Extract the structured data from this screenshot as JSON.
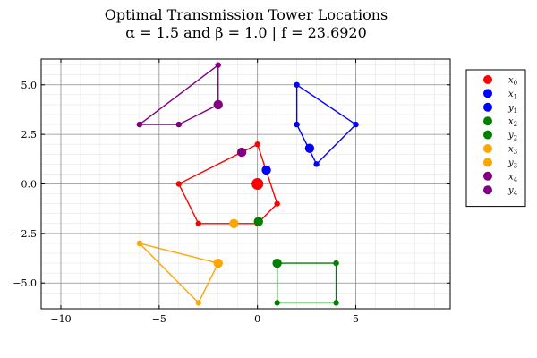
{
  "chart_data": {
    "type": "scatter",
    "title": "Optimal Transmission Tower Locations",
    "subtitle": "α = 1.5 and β = 1.0 | f = 23.6920",
    "xlabel": "",
    "ylabel": "",
    "xlim": [
      -11,
      9.8
    ],
    "ylim": [
      -6.3,
      6.3
    ],
    "xticks": [
      -10,
      -5,
      0,
      5
    ],
    "xtick_labels": [
      "−10",
      "−5",
      "0",
      "5"
    ],
    "yticks": [
      -5,
      -2.5,
      0,
      2.5,
      5
    ],
    "ytick_labels": [
      "−5.0",
      "−2.5",
      "0.0",
      "2.5",
      "5.0"
    ],
    "grid": true,
    "legend_position": "top-right",
    "regions": [
      {
        "color": "#ff0000",
        "vertices": [
          [
            0,
            2
          ],
          [
            1,
            -1
          ],
          [
            0,
            -2
          ],
          [
            -3,
            -2
          ],
          [
            -4,
            0
          ]
        ]
      },
      {
        "color": "#0000ff",
        "vertices": [
          [
            2,
            5
          ],
          [
            5,
            3
          ],
          [
            3,
            1
          ],
          [
            2,
            3
          ]
        ]
      },
      {
        "color": "#008000",
        "vertices": [
          [
            1,
            -4
          ],
          [
            4,
            -4
          ],
          [
            4,
            -6
          ],
          [
            1,
            -6
          ]
        ]
      },
      {
        "color": "#ffa500",
        "vertices": [
          [
            -6,
            -3
          ],
          [
            -2,
            -4
          ],
          [
            -3,
            -6
          ]
        ]
      },
      {
        "color": "#800080",
        "vertices": [
          [
            -6,
            3
          ],
          [
            -2,
            6
          ],
          [
            -2,
            4
          ],
          [
            -4,
            3
          ]
        ]
      }
    ],
    "towers": [
      {
        "x": 0.0,
        "y": 0.0,
        "color": "#ff0000"
      },
      {
        "x": 0.45,
        "y": 0.7,
        "color": "#0000ff"
      },
      {
        "x": 2.65,
        "y": 1.8,
        "color": "#0000ff"
      },
      {
        "x": 0.05,
        "y": -1.9,
        "color": "#008000"
      },
      {
        "x": 1.0,
        "y": -4.0,
        "color": "#008000"
      },
      {
        "x": -1.2,
        "y": -2.0,
        "color": "#ffa500"
      },
      {
        "x": -2.0,
        "y": -4.0,
        "color": "#ffa500"
      },
      {
        "x": -2.0,
        "y": 4.0,
        "color": "#800080"
      },
      {
        "x": -0.8,
        "y": 1.6,
        "color": "#800080"
      }
    ],
    "legend": [
      {
        "label": "x",
        "sub": "0",
        "color": "#ff0000"
      },
      {
        "label": "x",
        "sub": "1",
        "color": "#0000ff"
      },
      {
        "label": "y",
        "sub": "1",
        "color": "#0000ff"
      },
      {
        "label": "x",
        "sub": "2",
        "color": "#008000"
      },
      {
        "label": "y",
        "sub": "2",
        "color": "#008000"
      },
      {
        "label": "x",
        "sub": "3",
        "color": "#ffa500"
      },
      {
        "label": "y",
        "sub": "3",
        "color": "#ffa500"
      },
      {
        "label": "x",
        "sub": "4",
        "color": "#800080"
      },
      {
        "label": "y",
        "sub": "4",
        "color": "#800080"
      }
    ]
  }
}
